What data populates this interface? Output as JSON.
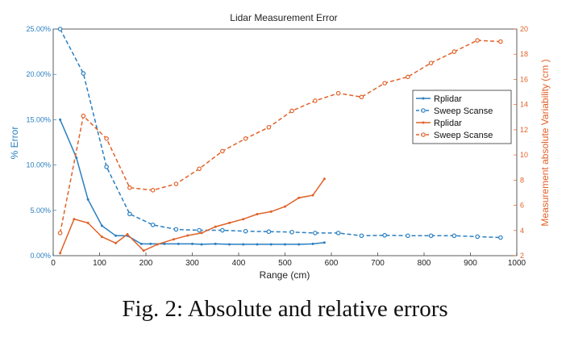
{
  "caption": "Fig. 2: Absolute and relative errors",
  "chart_data": {
    "type": "line",
    "title": "Lidar Measurement Error",
    "xlabel": "Range (cm)",
    "ylabel_left": "% Error",
    "ylabel_right": "Measurement absolute Variability (cm )",
    "xlim": [
      0,
      1000
    ],
    "ylim_left": [
      0,
      25
    ],
    "ylim_right": [
      2,
      20
    ],
    "x_ticks": [
      "0",
      "100",
      "200",
      "300",
      "400",
      "500",
      "600",
      "700",
      "800",
      "900",
      "1000"
    ],
    "y_ticks_left": [
      "0.00%",
      "5.00%",
      "10.00%",
      "15.00%",
      "20.00%",
      "25.00%"
    ],
    "y_ticks_right": [
      "2",
      "4",
      "6",
      "8",
      "10",
      "12",
      "14",
      "16",
      "18",
      "20"
    ],
    "grid": false,
    "legend": {
      "placement": "right",
      "entries": [
        "Rplidar",
        "Sweep Scanse",
        "Rplidar",
        "Sweep Scanse"
      ]
    },
    "colors": {
      "blue": "#2a7fc0",
      "orange": "#e0622a"
    },
    "series": [
      {
        "name": "Rplidar",
        "axis": "left",
        "color": "#2a7fc0",
        "style": "solid",
        "marker": "dot",
        "x": [
          15,
          50,
          75,
          105,
          135,
          160,
          190,
          210,
          240,
          270,
          300,
          320,
          350,
          380,
          410,
          440,
          470,
          500,
          530,
          560,
          585
        ],
        "y": [
          15.0,
          10.8,
          6.2,
          3.3,
          2.2,
          2.2,
          1.3,
          1.3,
          1.3,
          1.3,
          1.3,
          1.25,
          1.3,
          1.25,
          1.25,
          1.25,
          1.25,
          1.25,
          1.25,
          1.3,
          1.45
        ]
      },
      {
        "name": "Sweep Scanse",
        "axis": "left",
        "color": "#2a7fc0",
        "style": "dashed",
        "marker": "circle",
        "x": [
          15,
          65,
          115,
          165,
          215,
          265,
          315,
          365,
          415,
          465,
          515,
          565,
          615,
          665,
          715,
          765,
          815,
          865,
          915,
          965
        ],
        "y": [
          25.0,
          20.1,
          9.8,
          4.6,
          3.4,
          2.9,
          2.8,
          2.8,
          2.7,
          2.65,
          2.6,
          2.5,
          2.5,
          2.2,
          2.25,
          2.2,
          2.2,
          2.2,
          2.1,
          2.0
        ]
      },
      {
        "name": "Rplidar",
        "axis": "right",
        "color": "#e0622a",
        "style": "solid",
        "marker": "dot",
        "x": [
          15,
          45,
          75,
          105,
          135,
          160,
          195,
          225,
          260,
          290,
          320,
          350,
          380,
          410,
          440,
          470,
          500,
          530,
          560,
          585
        ],
        "y": [
          2.2,
          4.9,
          4.6,
          3.5,
          3.0,
          3.7,
          2.4,
          2.9,
          3.3,
          3.6,
          3.8,
          4.3,
          4.6,
          4.9,
          5.3,
          5.5,
          5.9,
          6.6,
          6.8,
          8.1
        ]
      },
      {
        "name": "Sweep Scanse",
        "axis": "right",
        "color": "#e0622a",
        "style": "dashed",
        "marker": "circle",
        "x": [
          15,
          65,
          115,
          165,
          215,
          265,
          315,
          365,
          415,
          465,
          515,
          565,
          615,
          665,
          715,
          765,
          815,
          865,
          915,
          965
        ],
        "y": [
          3.8,
          13.1,
          11.3,
          7.4,
          7.2,
          7.7,
          8.9,
          10.3,
          11.3,
          12.2,
          13.5,
          14.3,
          14.9,
          14.6,
          15.7,
          16.2,
          17.3,
          18.2,
          19.1,
          19.0
        ]
      }
    ]
  }
}
